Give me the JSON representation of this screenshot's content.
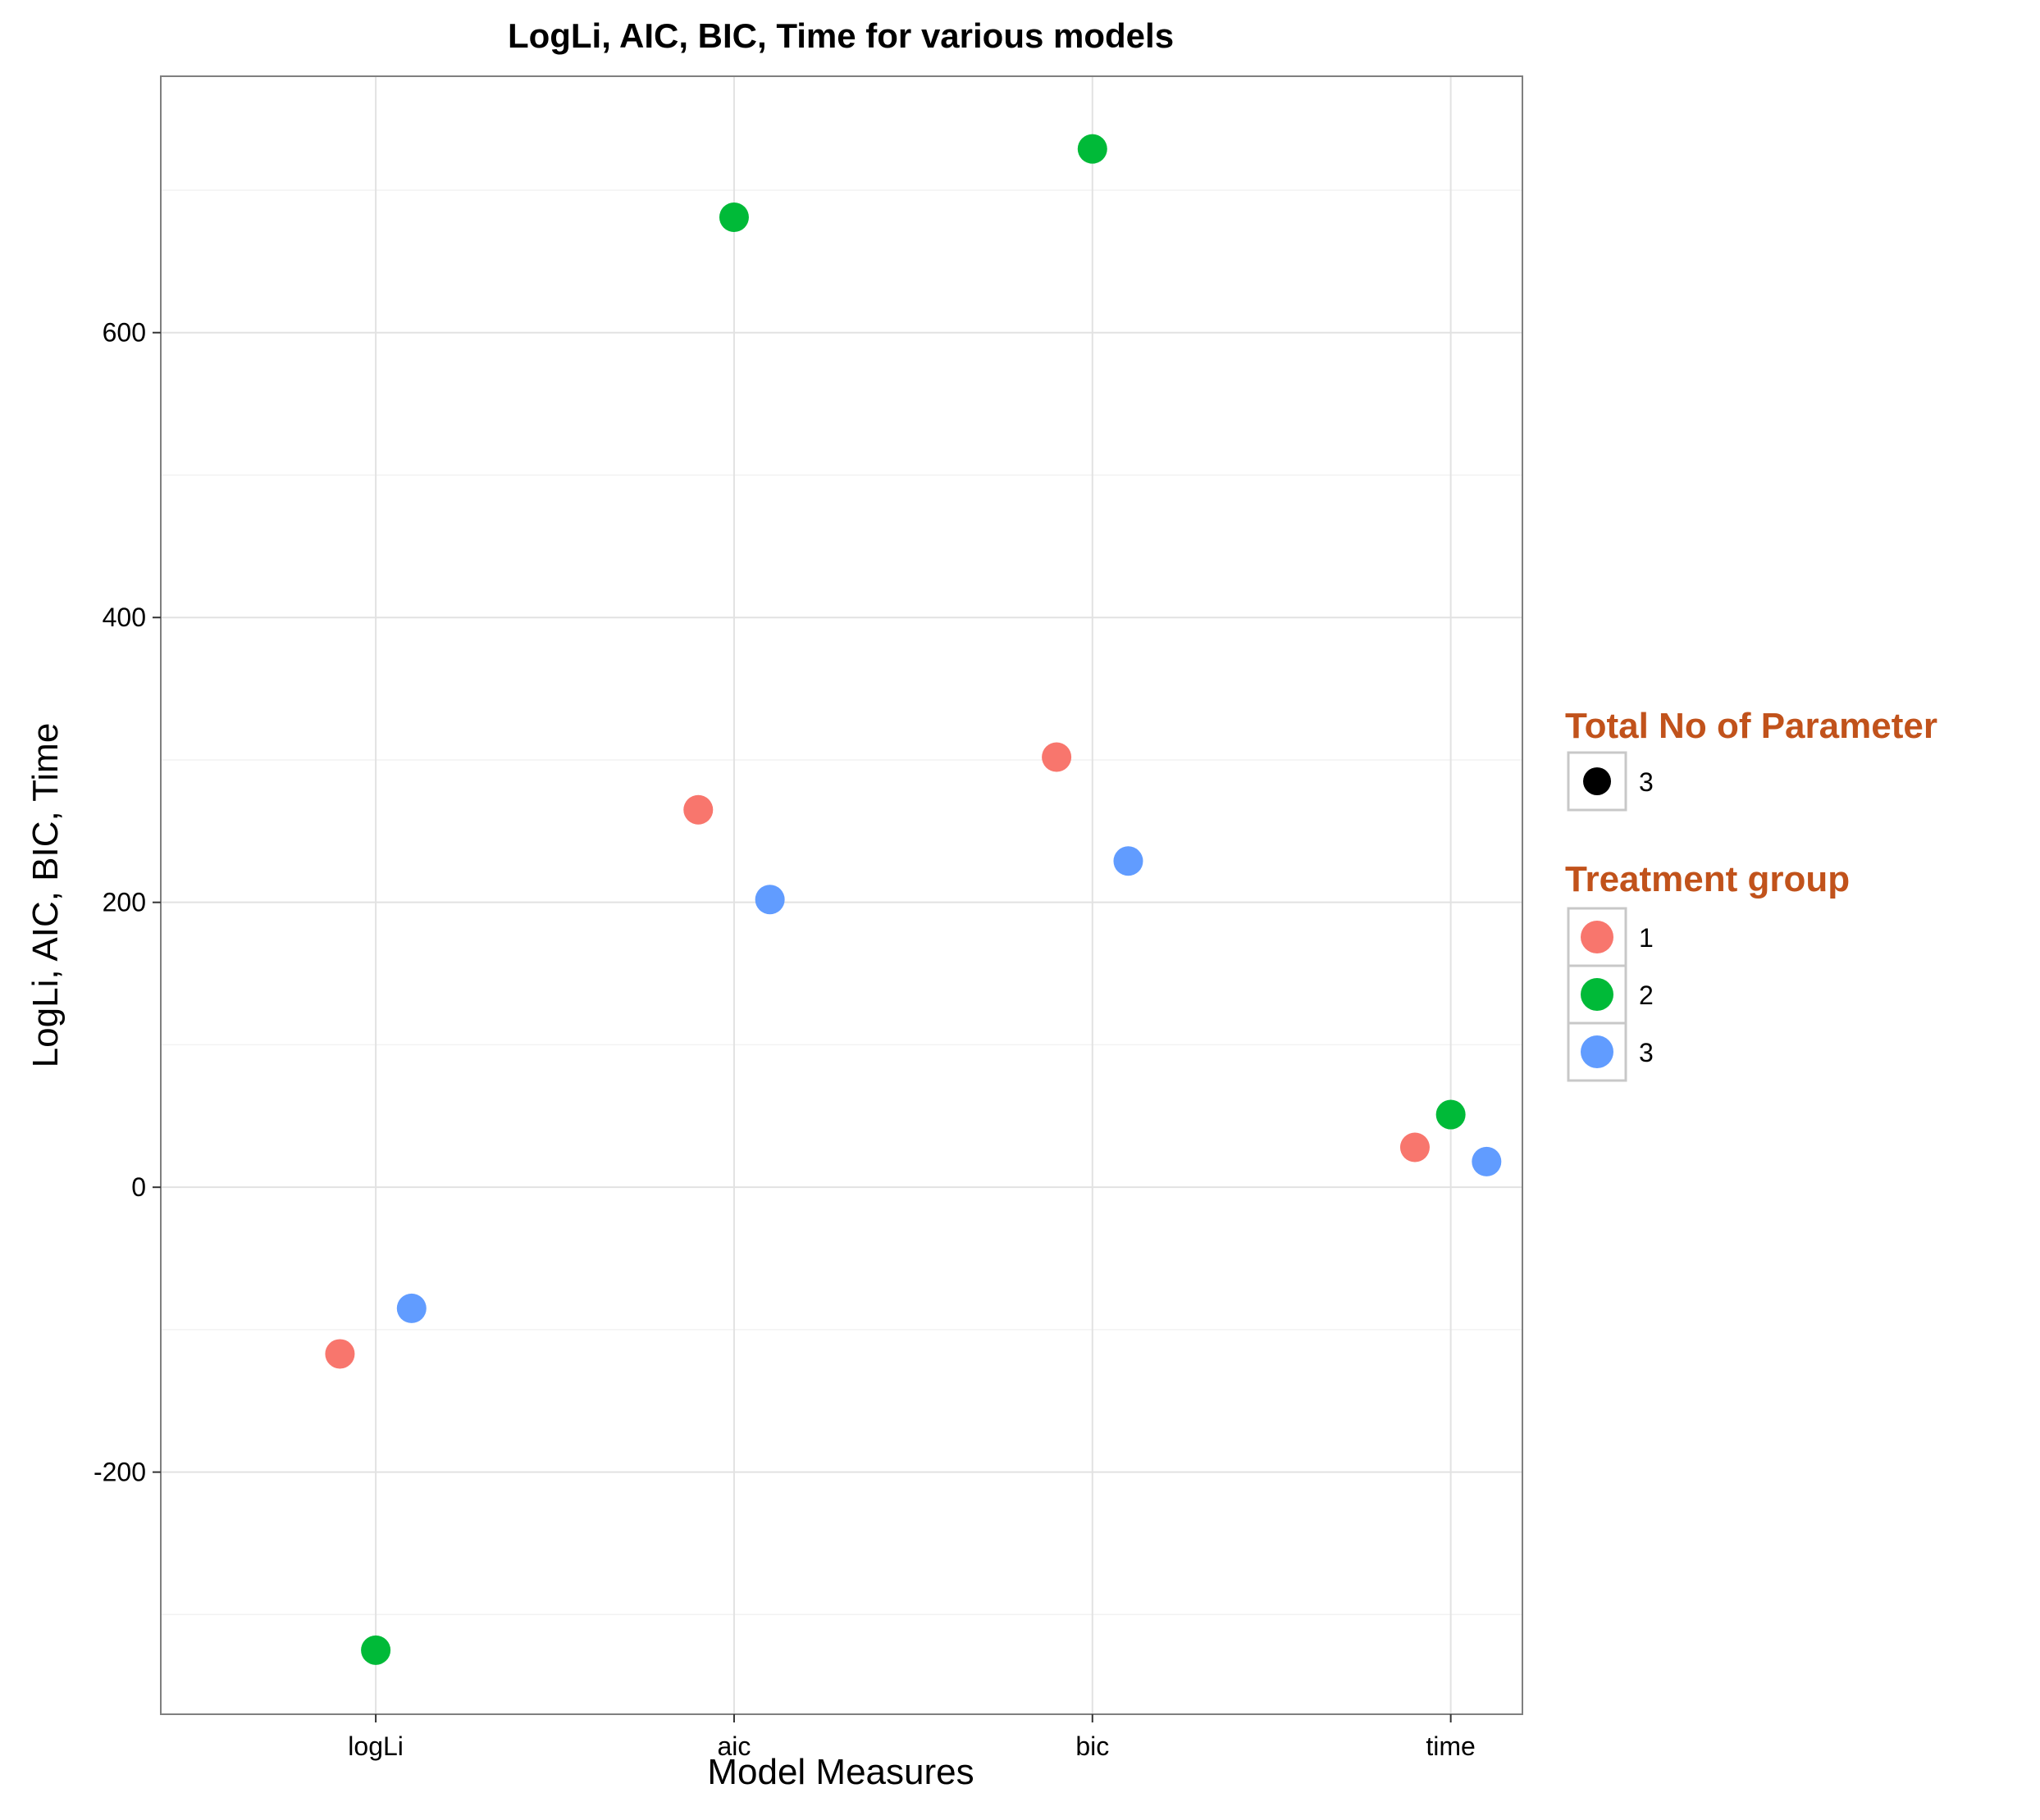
{
  "chart_data": {
    "type": "scatter",
    "title": "LogLi, AIC, BIC, Time for various models",
    "xlabel": "Model Measures",
    "ylabel": "LogLi, AIC, BIC, Time",
    "categories": [
      "logLi",
      "aic",
      "bic",
      "time"
    ],
    "ylim": [
      -370,
      780
    ],
    "yticks": [
      -200,
      0,
      200,
      400,
      600
    ],
    "grid": true,
    "series": [
      {
        "name": "1",
        "color": "#F8766D",
        "offsets": [
          -0.1,
          -0.1,
          -0.1,
          -0.1
        ],
        "values": [
          -117,
          265,
          302,
          28
        ]
      },
      {
        "name": "2",
        "color": "#00BA38",
        "offsets": [
          0,
          0,
          0,
          0
        ],
        "values": [
          -325,
          681,
          729,
          51
        ]
      },
      {
        "name": "3",
        "color": "#619CFF",
        "offsets": [
          0.1,
          0.1,
          0.1,
          0.1
        ],
        "values": [
          -85,
          202,
          229,
          18
        ]
      }
    ],
    "legend": {
      "position": "right",
      "title_color": "#C1521B",
      "size_legend": {
        "title": "Total No of Parameter",
        "entries": [
          {
            "label": "3",
            "color": "#000000"
          }
        ]
      },
      "color_legend": {
        "title": "Treatment group",
        "entries": [
          {
            "label": "1",
            "color": "#F8766D"
          },
          {
            "label": "2",
            "color": "#00BA38"
          },
          {
            "label": "3",
            "color": "#619CFF"
          }
        ]
      }
    }
  }
}
